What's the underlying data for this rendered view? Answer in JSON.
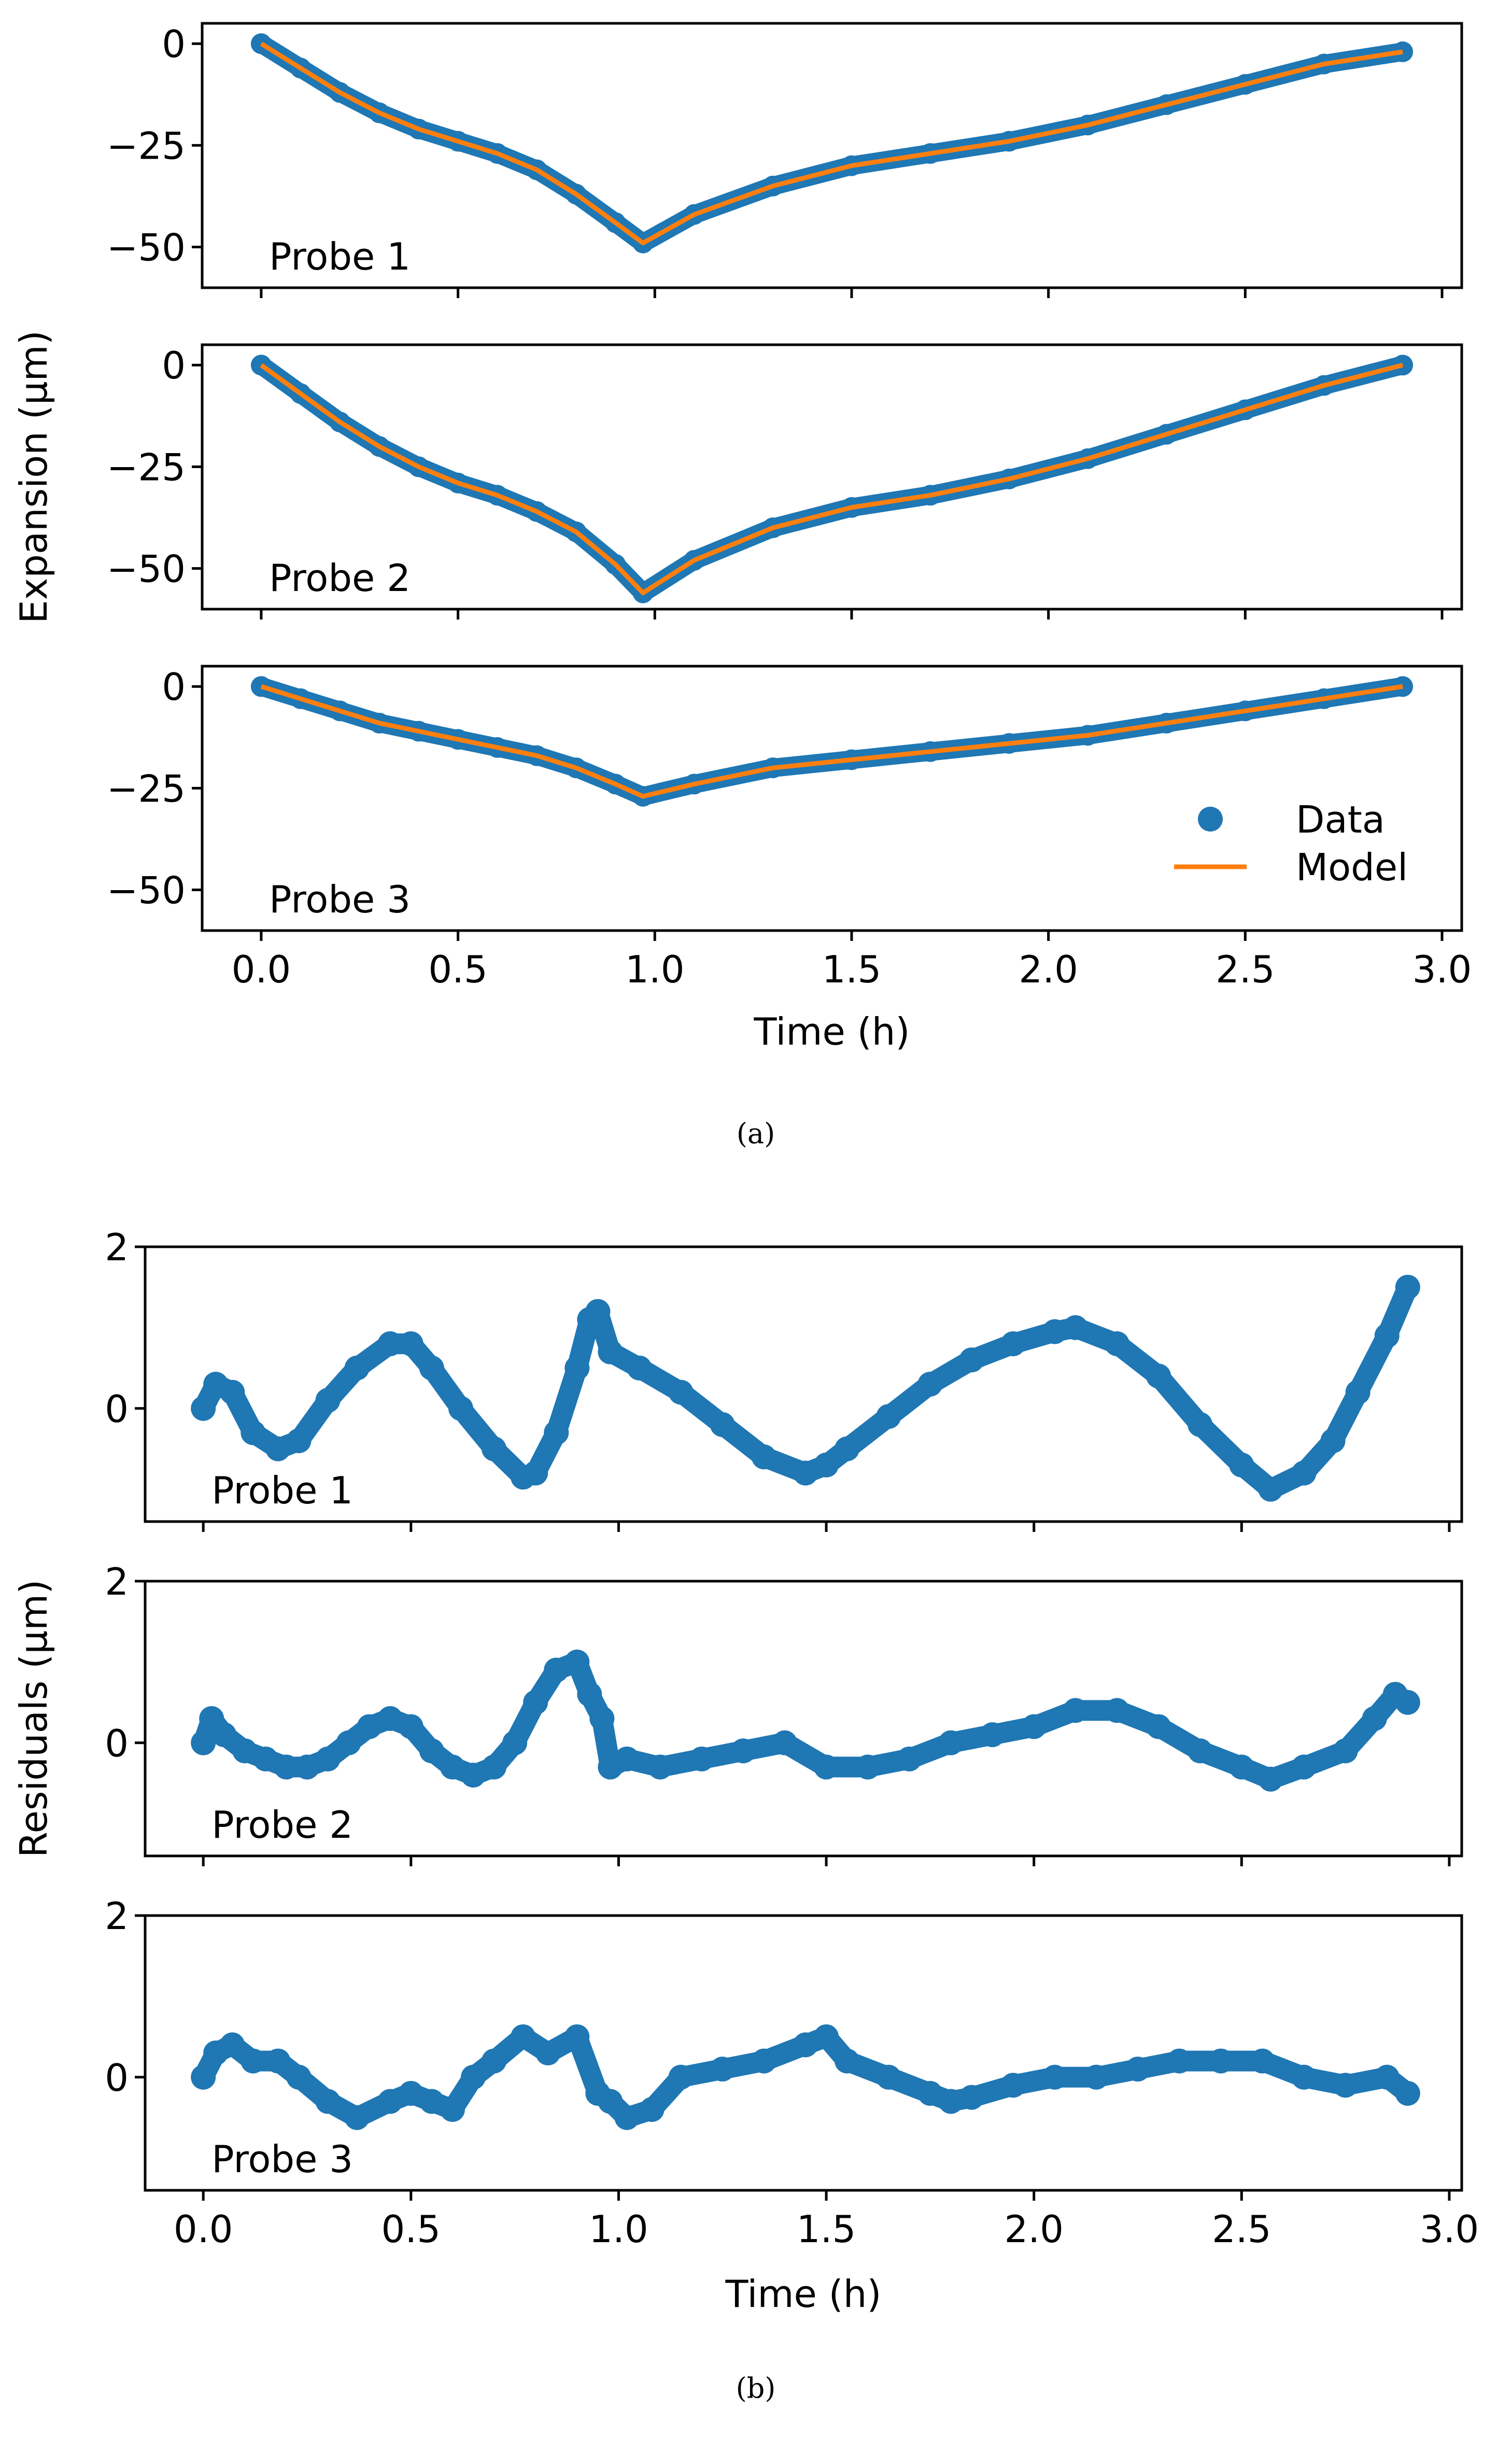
{
  "chart_data": [
    {
      "type": "line",
      "caption": "(a)",
      "xlabel": "Time (h)",
      "ylabel": "Expansion (μm)",
      "xlim": [
        -0.15,
        3.05
      ],
      "xticks": [
        0.0,
        0.5,
        1.0,
        1.5,
        2.0,
        2.5,
        3.0
      ],
      "xtick_labels": [
        "0.0",
        "0.5",
        "1.0",
        "1.5",
        "2.0",
        "2.5",
        "3.0"
      ],
      "ylim": [
        -60,
        5
      ],
      "yticks": [
        0,
        -25,
        -50
      ],
      "ytick_labels": [
        "0",
        "−25",
        "−50"
      ],
      "grid": false,
      "legend": {
        "placement": "lower-right",
        "entries": [
          "Data",
          "Model"
        ]
      },
      "colors": {
        "data": "#1f77b4",
        "model": "#ff7f0e"
      },
      "panels": [
        {
          "label": "Probe 1",
          "x": [
            0.0,
            0.1,
            0.2,
            0.3,
            0.4,
            0.5,
            0.6,
            0.7,
            0.8,
            0.9,
            0.97,
            1.1,
            1.3,
            1.5,
            1.7,
            1.9,
            2.1,
            2.3,
            2.5,
            2.7,
            2.9
          ],
          "y": [
            0,
            -6,
            -12,
            -17,
            -21,
            -24,
            -27,
            -31,
            -37,
            -44,
            -49,
            -42,
            -35,
            -30,
            -27,
            -24,
            -20,
            -15,
            -10,
            -5,
            -2
          ]
        },
        {
          "label": "Probe 2",
          "x": [
            0.0,
            0.1,
            0.2,
            0.3,
            0.4,
            0.5,
            0.6,
            0.7,
            0.8,
            0.9,
            0.97,
            1.1,
            1.3,
            1.5,
            1.7,
            1.9,
            2.1,
            2.3,
            2.5,
            2.7,
            2.9
          ],
          "y": [
            0,
            -7,
            -14,
            -20,
            -25,
            -29,
            -32,
            -36,
            -41,
            -49,
            -56,
            -48,
            -40,
            -35,
            -32,
            -28,
            -23,
            -17,
            -11,
            -5,
            0
          ]
        },
        {
          "label": "Probe 3",
          "x": [
            0.0,
            0.1,
            0.2,
            0.3,
            0.4,
            0.5,
            0.6,
            0.7,
            0.8,
            0.9,
            0.97,
            1.1,
            1.3,
            1.5,
            1.7,
            1.9,
            2.1,
            2.3,
            2.5,
            2.7,
            2.9
          ],
          "y": [
            0,
            -3,
            -6,
            -9,
            -11,
            -13,
            -15,
            -17,
            -20,
            -24,
            -27,
            -24,
            -20,
            -18,
            -16,
            -14,
            -12,
            -9,
            -6,
            -3,
            0
          ]
        }
      ]
    },
    {
      "type": "scatter",
      "caption": "(b)",
      "xlabel": "Time (h)",
      "ylabel": "Residuals (μm)",
      "xlim": [
        -0.14,
        3.03
      ],
      "xticks": [
        0.0,
        0.5,
        1.0,
        1.5,
        2.0,
        2.5,
        3.0
      ],
      "xtick_labels": [
        "0.0",
        "0.5",
        "1.0",
        "1.5",
        "2.0",
        "2.5",
        "3.0"
      ],
      "ylim": [
        -1.4,
        2.0
      ],
      "yticks": [
        2,
        0
      ],
      "ytick_labels": [
        "2",
        "0"
      ],
      "grid": false,
      "colors": {
        "data": "#1f77b4"
      },
      "panels": [
        {
          "label": "Probe 1",
          "x": [
            0.0,
            0.03,
            0.07,
            0.12,
            0.18,
            0.23,
            0.3,
            0.37,
            0.45,
            0.5,
            0.55,
            0.62,
            0.7,
            0.77,
            0.8,
            0.85,
            0.9,
            0.93,
            0.95,
            0.98,
            1.05,
            1.15,
            1.25,
            1.35,
            1.45,
            1.5,
            1.55,
            1.65,
            1.75,
            1.85,
            1.95,
            2.05,
            2.1,
            2.2,
            2.3,
            2.4,
            2.5,
            2.57,
            2.65,
            2.72,
            2.78,
            2.85,
            2.9
          ],
          "y": [
            0.0,
            0.3,
            0.2,
            -0.3,
            -0.5,
            -0.4,
            0.1,
            0.5,
            0.8,
            0.8,
            0.5,
            0.0,
            -0.5,
            -0.85,
            -0.8,
            -0.3,
            0.5,
            1.1,
            1.2,
            0.7,
            0.5,
            0.2,
            -0.2,
            -0.6,
            -0.8,
            -0.7,
            -0.5,
            -0.1,
            0.3,
            0.6,
            0.8,
            0.95,
            1.0,
            0.8,
            0.4,
            -0.2,
            -0.7,
            -1.0,
            -0.8,
            -0.4,
            0.2,
            0.9,
            1.5
          ]
        },
        {
          "label": "Probe 2",
          "x": [
            0.0,
            0.02,
            0.05,
            0.1,
            0.15,
            0.2,
            0.25,
            0.3,
            0.35,
            0.4,
            0.45,
            0.5,
            0.55,
            0.6,
            0.65,
            0.7,
            0.75,
            0.8,
            0.85,
            0.9,
            0.93,
            0.96,
            0.98,
            1.02,
            1.1,
            1.2,
            1.3,
            1.4,
            1.5,
            1.6,
            1.7,
            1.8,
            1.9,
            2.0,
            2.1,
            2.2,
            2.3,
            2.4,
            2.5,
            2.57,
            2.65,
            2.75,
            2.82,
            2.87,
            2.9
          ],
          "y": [
            0.0,
            0.3,
            0.1,
            -0.1,
            -0.2,
            -0.3,
            -0.3,
            -0.2,
            0.0,
            0.2,
            0.3,
            0.2,
            -0.1,
            -0.3,
            -0.4,
            -0.3,
            0.0,
            0.5,
            0.9,
            1.0,
            0.6,
            0.3,
            -0.3,
            -0.2,
            -0.3,
            -0.2,
            -0.1,
            0.0,
            -0.3,
            -0.3,
            -0.2,
            0.0,
            0.1,
            0.2,
            0.4,
            0.4,
            0.2,
            -0.1,
            -0.3,
            -0.45,
            -0.3,
            -0.1,
            0.3,
            0.6,
            0.5
          ]
        },
        {
          "label": "Probe 3",
          "x": [
            0.0,
            0.03,
            0.07,
            0.12,
            0.18,
            0.23,
            0.3,
            0.37,
            0.45,
            0.5,
            0.55,
            0.6,
            0.65,
            0.7,
            0.77,
            0.83,
            0.9,
            0.95,
            0.98,
            1.02,
            1.08,
            1.15,
            1.25,
            1.35,
            1.45,
            1.5,
            1.55,
            1.65,
            1.75,
            1.8,
            1.85,
            1.95,
            2.05,
            2.15,
            2.25,
            2.35,
            2.45,
            2.55,
            2.65,
            2.75,
            2.85,
            2.9
          ],
          "y": [
            0.0,
            0.3,
            0.4,
            0.2,
            0.2,
            0.0,
            -0.3,
            -0.5,
            -0.3,
            -0.2,
            -0.3,
            -0.4,
            0.0,
            0.2,
            0.5,
            0.3,
            0.5,
            -0.2,
            -0.3,
            -0.5,
            -0.4,
            0.0,
            0.1,
            0.2,
            0.4,
            0.5,
            0.2,
            0.0,
            -0.2,
            -0.3,
            -0.25,
            -0.1,
            0.0,
            0.0,
            0.1,
            0.2,
            0.2,
            0.2,
            0.0,
            -0.1,
            0.0,
            -0.2
          ]
        }
      ]
    }
  ]
}
